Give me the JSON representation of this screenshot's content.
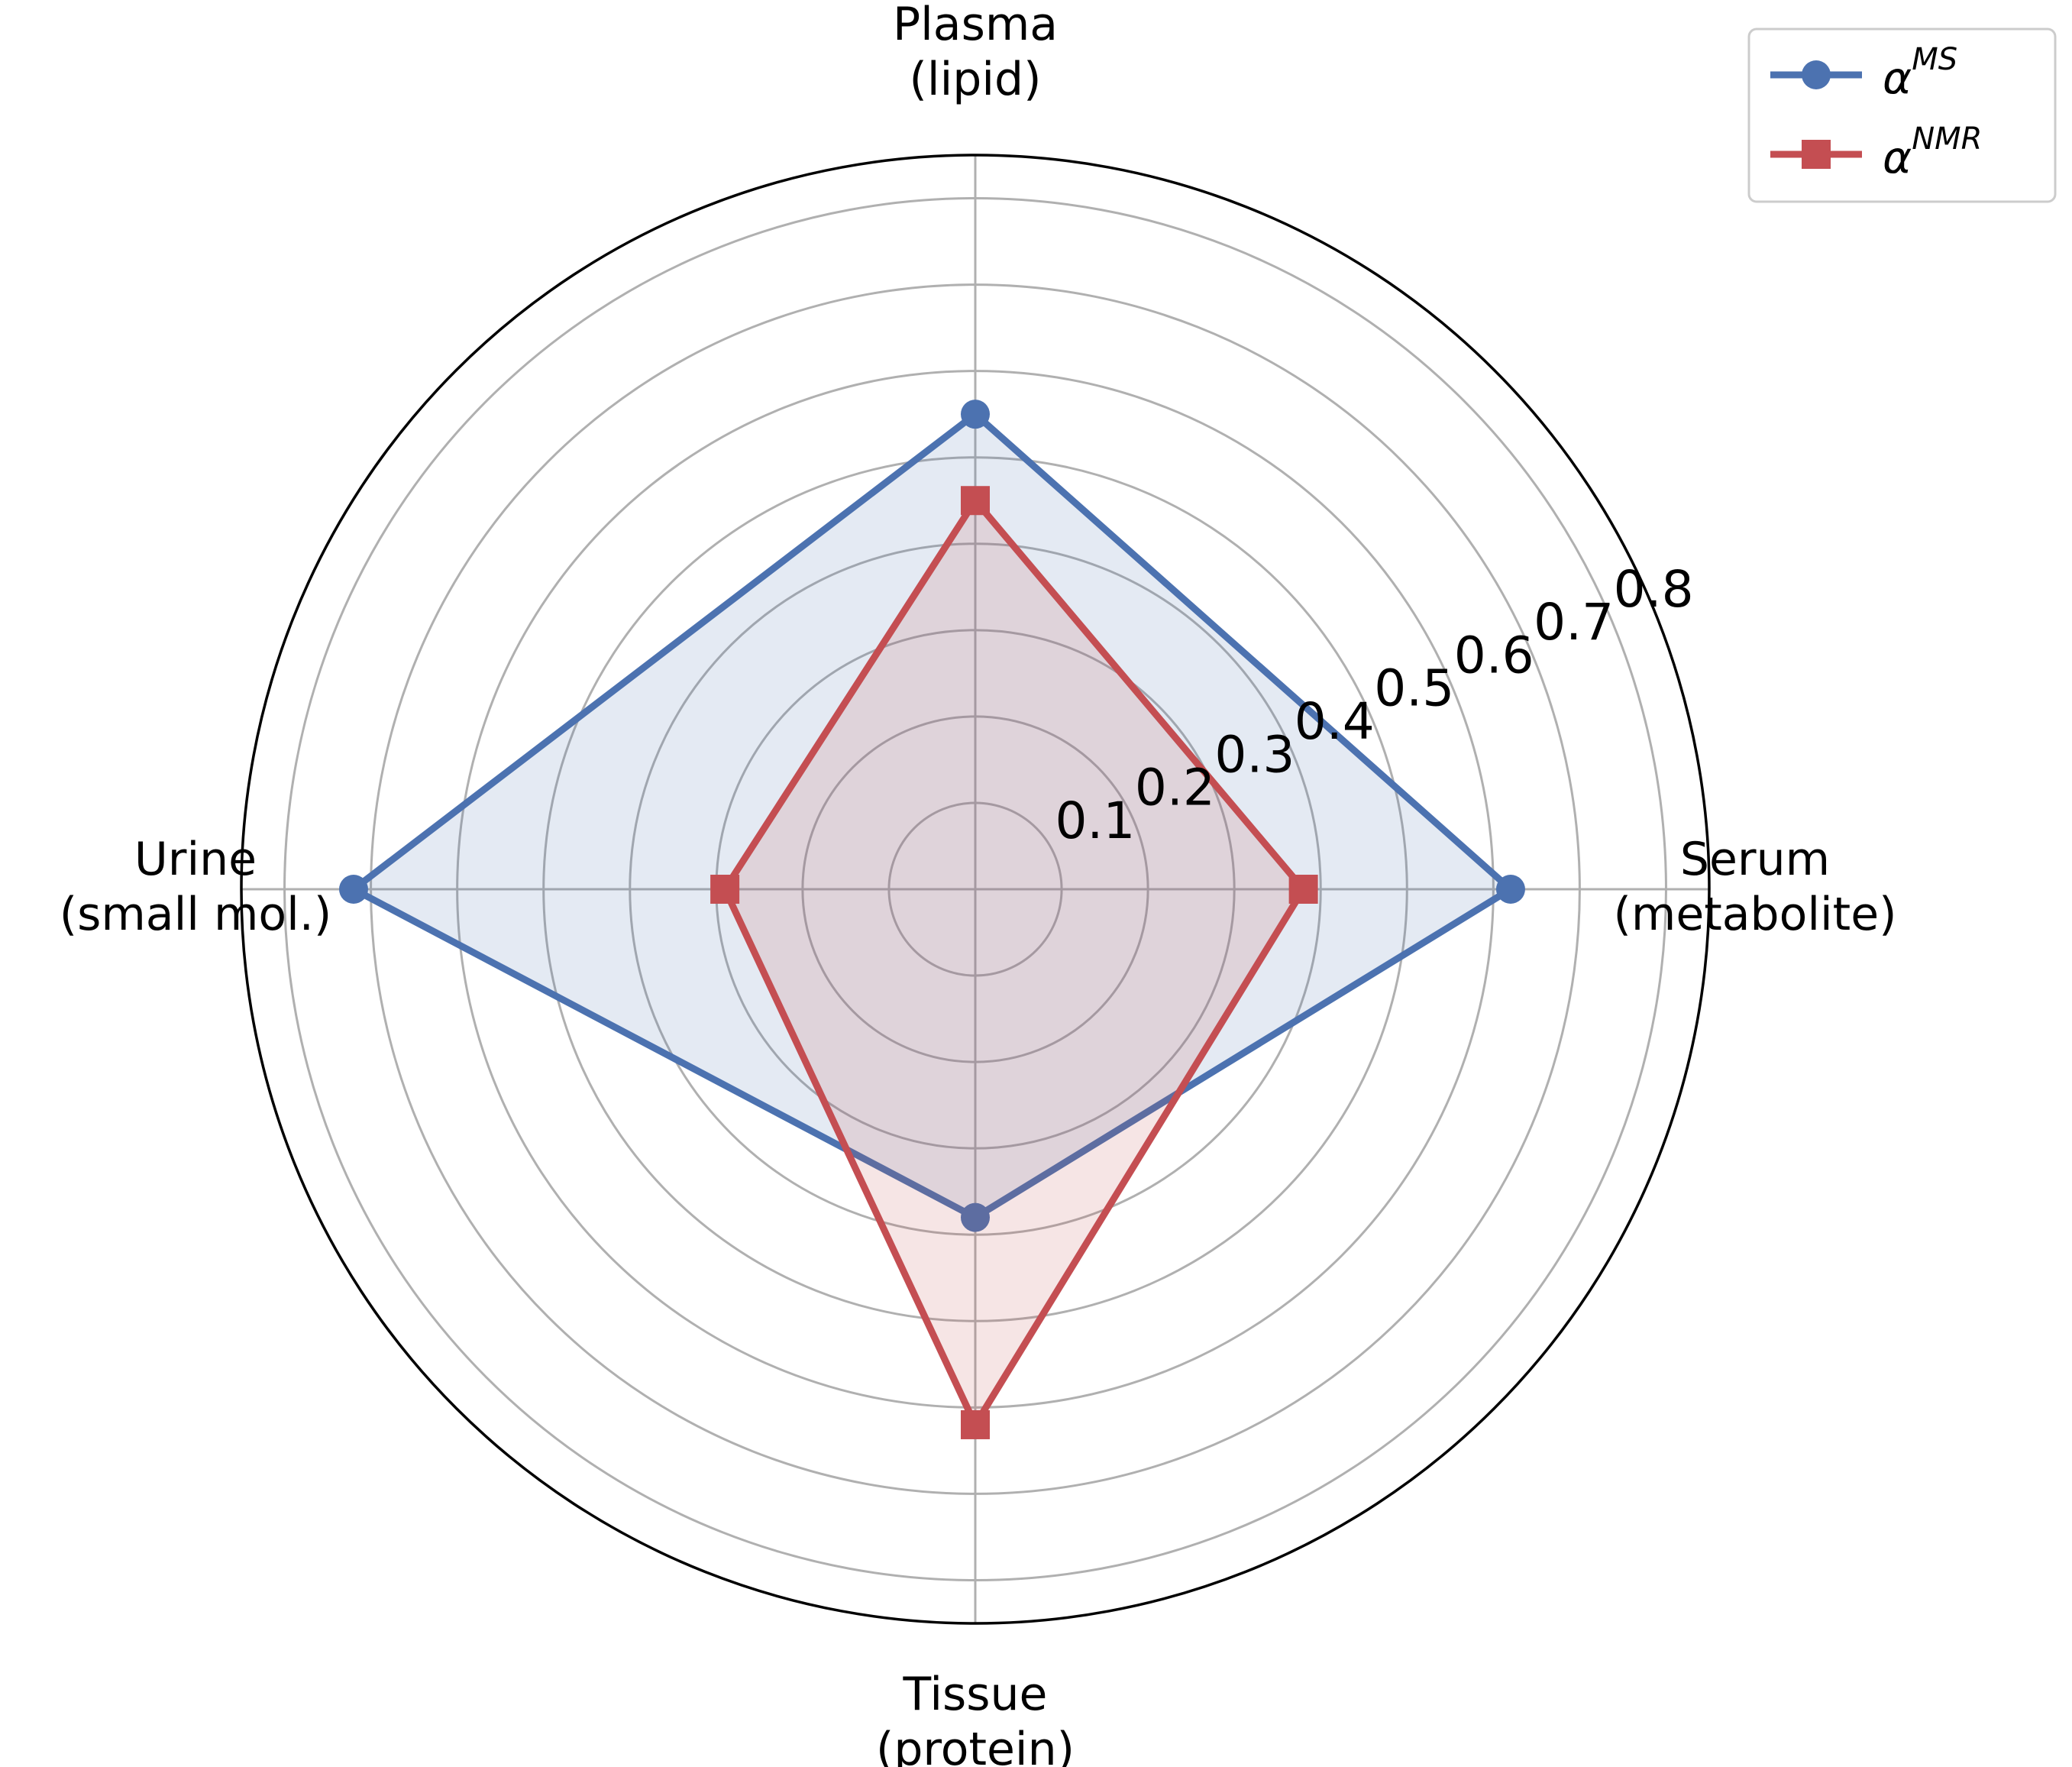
{
  "chart_data": {
    "type": "radar",
    "categories": [
      "Serum\n(metabolite)",
      "Plasma\n(lipid)",
      "Urine\n(small mol.)",
      "Tissue\n(protein)"
    ],
    "series": [
      {
        "name": "α^MS",
        "color": "#4c72b0",
        "marker": "circle",
        "values": [
          0.62,
          0.55,
          0.72,
          0.38
        ]
      },
      {
        "name": "α^NMR",
        "color": "#c44e52",
        "marker": "square",
        "values": [
          0.38,
          0.45,
          0.29,
          0.62
        ]
      }
    ],
    "ylim": [
      0,
      0.85
    ],
    "yticks": [
      0.1,
      0.2,
      0.3,
      0.4,
      0.5,
      0.6,
      0.7,
      0.8
    ],
    "grid": true,
    "legend": "upper right"
  }
}
